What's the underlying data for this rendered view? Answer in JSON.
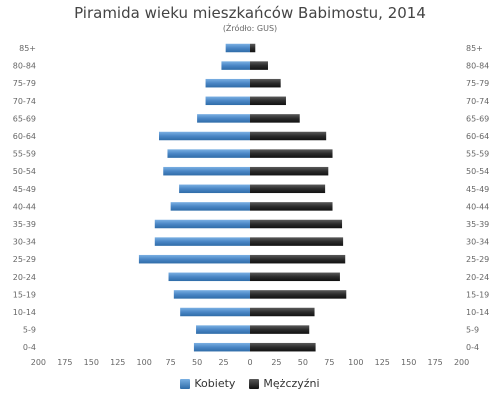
{
  "chart_data": {
    "type": "bar",
    "orientation": "horizontal-population-pyramid",
    "title": "Piramida wieku mieszkańców Babimostu, 2014",
    "subtitle": "(Źródło: GUS)",
    "categories": [
      "85+",
      "80-84",
      "75-79",
      "70-74",
      "65-69",
      "60-64",
      "55-59",
      "50-54",
      "45-49",
      "40-44",
      "35-39",
      "30-34",
      "25-29",
      "20-24",
      "15-19",
      "10-14",
      "5-9",
      "0-4"
    ],
    "series": [
      {
        "name": "Kobiety",
        "color": "#4a86c5",
        "values": [
          23,
          27,
          42,
          42,
          50,
          86,
          78,
          82,
          67,
          75,
          90,
          90,
          105,
          77,
          72,
          66,
          51,
          53
        ]
      },
      {
        "name": "Mężczyźni",
        "color": "#2b2b2b",
        "values": [
          5,
          17,
          29,
          34,
          47,
          72,
          78,
          74,
          71,
          78,
          87,
          88,
          90,
          85,
          91,
          61,
          56,
          62
        ]
      }
    ],
    "xlim": [
      -200,
      200
    ],
    "x_ticks": [
      200,
      175,
      150,
      125,
      100,
      75,
      50,
      25,
      0,
      25,
      50,
      75,
      100,
      125,
      150,
      175,
      200
    ],
    "grid": false,
    "legend_position": "bottom-center"
  }
}
